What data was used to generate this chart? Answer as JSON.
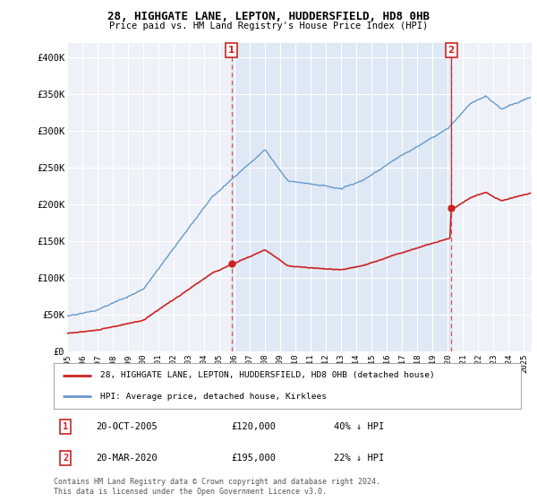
{
  "title1": "28, HIGHGATE LANE, LEPTON, HUDDERSFIELD, HD8 0HB",
  "title2": "Price paid vs. HM Land Registry's House Price Index (HPI)",
  "background_color": "#eef2f8",
  "plot_bg_color": "#eef2f8",
  "hpi_color": "#6699cc",
  "hpi_fill_color": "#dde8f5",
  "price_color": "#cc2222",
  "ylabel_ticks": [
    "£0",
    "£50K",
    "£100K",
    "£150K",
    "£200K",
    "£250K",
    "£300K",
    "£350K",
    "£400K"
  ],
  "ytick_values": [
    0,
    50000,
    100000,
    150000,
    200000,
    250000,
    300000,
    350000,
    400000
  ],
  "ylim": [
    0,
    420000
  ],
  "xlim_start": 1995.0,
  "xlim_end": 2025.5,
  "xtick_years": [
    1995,
    1996,
    1997,
    1998,
    1999,
    2000,
    2001,
    2002,
    2003,
    2004,
    2005,
    2006,
    2007,
    2008,
    2009,
    2010,
    2011,
    2012,
    2013,
    2014,
    2015,
    2016,
    2017,
    2018,
    2019,
    2020,
    2021,
    2022,
    2023,
    2024,
    2025
  ],
  "sale1_x": 2005.8,
  "sale1_y": 120000,
  "sale1_label": "1",
  "sale2_x": 2020.22,
  "sale2_y": 195000,
  "sale2_label": "2",
  "legend_line1": "28, HIGHGATE LANE, LEPTON, HUDDERSFIELD, HD8 0HB (detached house)",
  "legend_line2": "HPI: Average price, detached house, Kirklees",
  "note1_label": "1",
  "note1_date": "20-OCT-2005",
  "note1_price": "£120,000",
  "note1_pct": "40% ↓ HPI",
  "note2_label": "2",
  "note2_date": "20-MAR-2020",
  "note2_price": "£195,000",
  "note2_pct": "22% ↓ HPI",
  "footer": "Contains HM Land Registry data © Crown copyright and database right 2024.\nThis data is licensed under the Open Government Licence v3.0."
}
